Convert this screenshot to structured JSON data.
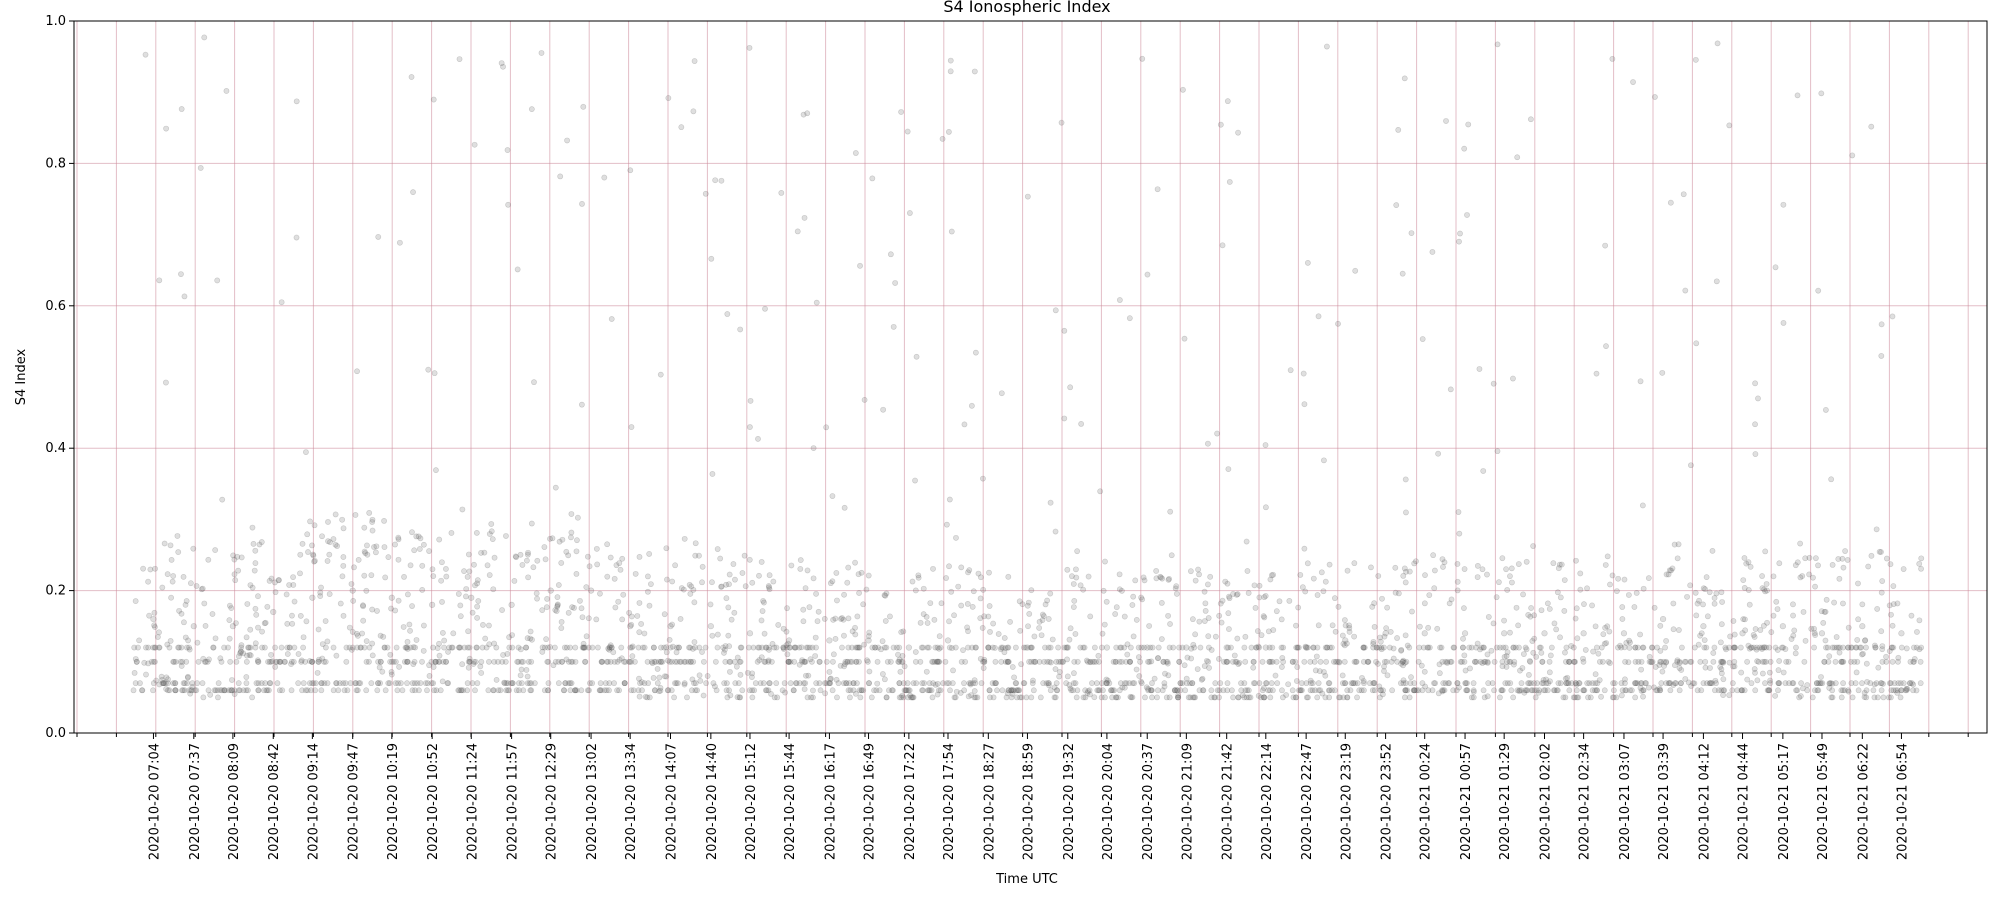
{
  "chart_data": {
    "type": "scatter",
    "title": "S4 Ionospheric Index",
    "xlabel": "Time UTC",
    "ylabel": "S4 Index",
    "xlim": [
      "2020-10-20 05:59",
      "2020-10-21 08:04"
    ],
    "ylim": [
      0,
      1
    ],
    "yticks": [
      "0.0",
      "0.2",
      "0.4",
      "0.6",
      "0.8",
      "1.0"
    ],
    "xticks": [
      "2020-10-20 07:04",
      "2020-10-20 07:37",
      "2020-10-20 08:09",
      "2020-10-20 08:42",
      "2020-10-20 09:14",
      "2020-10-20 09:47",
      "2020-10-20 10:19",
      "2020-10-20 10:52",
      "2020-10-20 11:24",
      "2020-10-20 11:57",
      "2020-10-20 12:29",
      "2020-10-20 13:02",
      "2020-10-20 13:34",
      "2020-10-20 14:07",
      "2020-10-20 14:40",
      "2020-10-20 15:12",
      "2020-10-20 15:44",
      "2020-10-20 16:17",
      "2020-10-20 16:49",
      "2020-10-20 17:22",
      "2020-10-20 17:54",
      "2020-10-20 18:27",
      "2020-10-20 18:59",
      "2020-10-20 19:32",
      "2020-10-20 20:04",
      "2020-10-20 20:37",
      "2020-10-20 21:09",
      "2020-10-20 21:42",
      "2020-10-20 22:14",
      "2020-10-20 22:47",
      "2020-10-20 23:19",
      "2020-10-20 23:52",
      "2020-10-21 00:24",
      "2020-10-21 00:57",
      "2020-10-21 01:29",
      "2020-10-21 02:02",
      "2020-10-21 02:34",
      "2020-10-21 03:07",
      "2020-10-21 03:39",
      "2020-10-21 04:12",
      "2020-10-21 04:44",
      "2020-10-21 05:17",
      "2020-10-21 05:49",
      "2020-10-21 06:22",
      "2020-10-21 06:54"
    ],
    "grid": true,
    "series": [
      {
        "x": [
          "2020-10-20 07:04",
          "2020-10-20 07:37",
          "2020-10-20 08:09",
          "2020-10-20 08:42",
          "2020-10-20 09:14",
          "2020-10-20 09:47",
          "2020-10-20 10:19",
          "2020-10-20 10:52",
          "2020-10-20 11:24",
          "2020-10-20 11:57",
          "2020-10-20 12:29",
          "2020-10-20 13:02",
          "2020-10-20 13:34",
          "2020-10-20 14:07",
          "2020-10-20 14:40",
          "2020-10-20 15:12",
          "2020-10-20 15:44",
          "2020-10-20 16:17",
          "2020-10-20 16:49",
          "2020-10-20 17:22",
          "2020-10-20 17:54",
          "2020-10-20 18:27",
          "2020-10-20 18:59",
          "2020-10-20 19:32",
          "2020-10-20 20:04",
          "2020-10-20 20:37",
          "2020-10-20 21:09",
          "2020-10-20 21:42",
          "2020-10-20 22:14",
          "2020-10-20 22:47",
          "2020-10-20 23:19",
          "2020-10-20 23:52",
          "2020-10-21 00:24",
          "2020-10-21 00:57",
          "2020-10-21 01:29",
          "2020-10-21 02:02",
          "2020-10-21 02:34",
          "2020-10-21 03:07",
          "2020-10-21 03:39",
          "2020-10-21 04:12",
          "2020-10-21 04:44",
          "2020-10-21 05:17",
          "2020-10-21 05:49",
          "2020-10-21 06:22",
          "2020-10-21 06:54"
        ],
        "y": [
          0.16,
          0.15,
          0.15,
          0.17,
          0.19,
          0.2,
          0.19,
          0.18,
          0.19,
          0.18,
          0.2,
          0.2,
          0.15,
          0.15,
          0.15,
          0.14,
          0.13,
          0.13,
          0.13,
          0.12,
          0.13,
          0.12,
          0.12,
          0.12,
          0.12,
          0.12,
          0.12,
          0.12,
          0.12,
          0.12,
          0.13,
          0.14,
          0.14,
          0.14,
          0.14,
          0.14,
          0.14,
          0.14,
          0.16,
          0.15,
          0.14,
          0.15,
          0.14,
          0.15,
          0.14
        ],
        "y_spread_approx": [
          0.06,
          0.4
        ],
        "discrete_levels": [
          0.06,
          0.07,
          0.1,
          0.12
        ]
      }
    ]
  }
}
